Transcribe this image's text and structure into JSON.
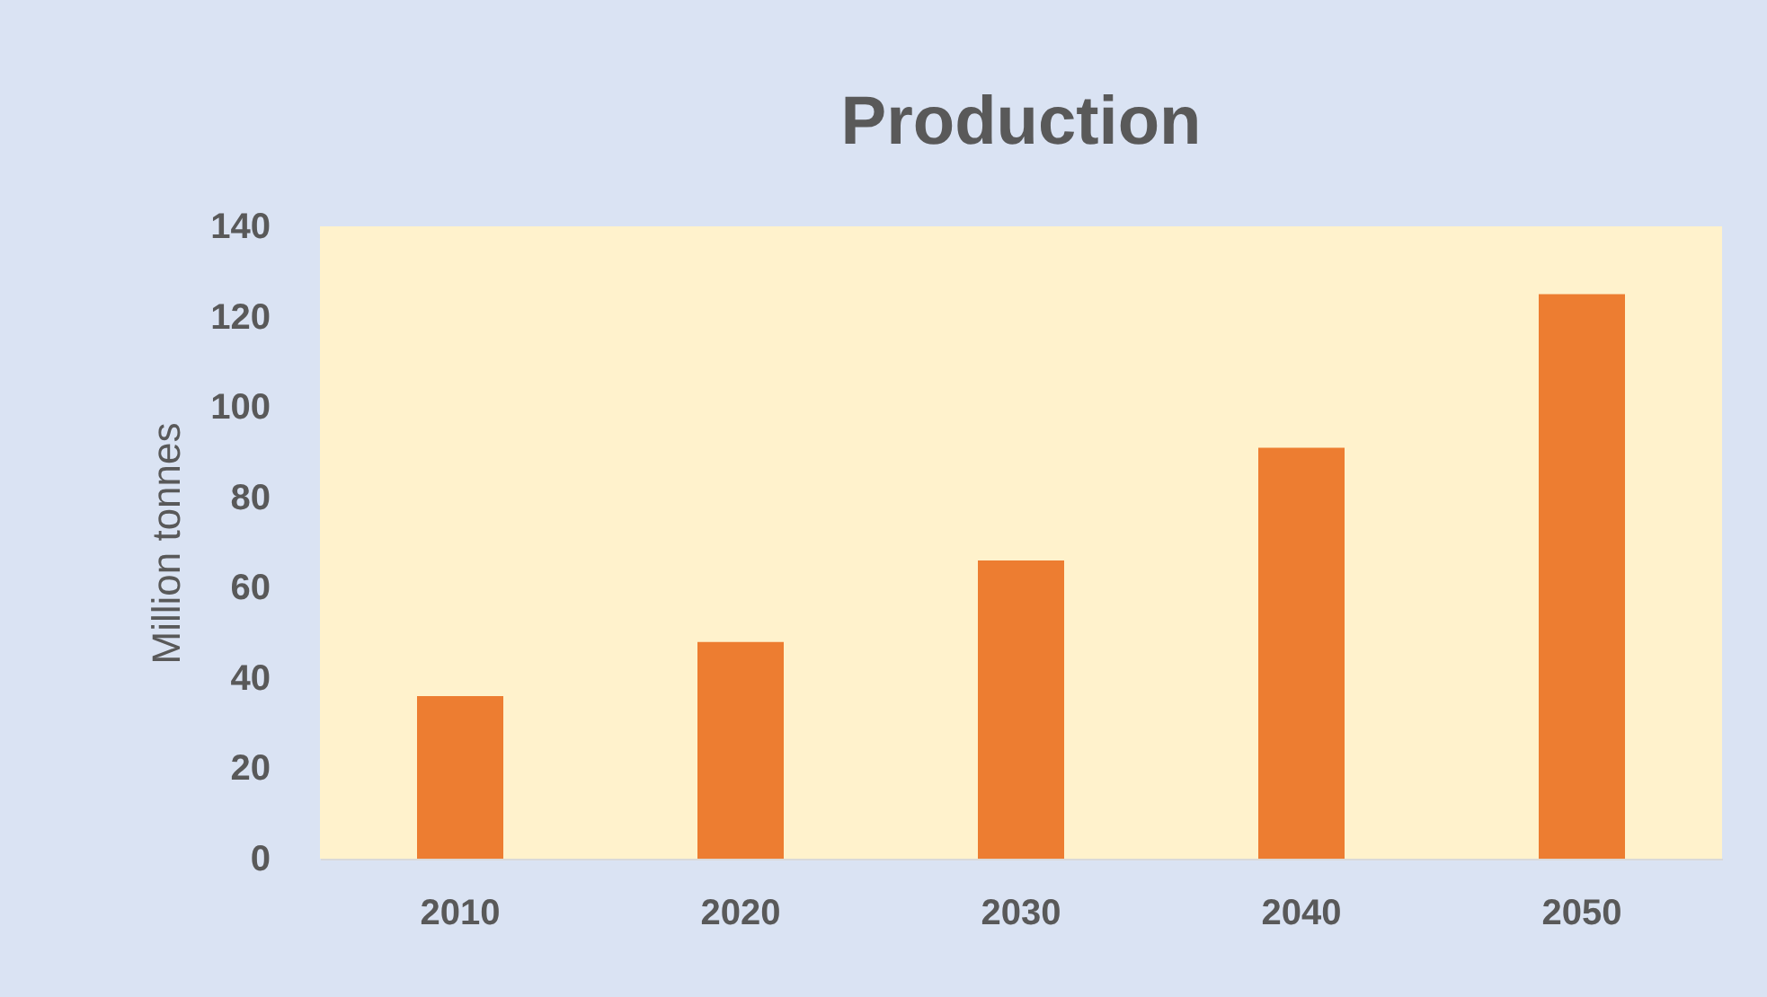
{
  "chart_data": {
    "type": "bar",
    "title": "Production",
    "ylabel": "Million tonnes",
    "categories": [
      "2010",
      "2020",
      "2030",
      "2040",
      "2050"
    ],
    "values": [
      36,
      48,
      66,
      91,
      125
    ],
    "color": "#ed7d31",
    "ylim": [
      0,
      140
    ],
    "yticks": [
      0,
      20,
      40,
      60,
      80,
      100,
      120,
      140
    ],
    "grid": false
  }
}
